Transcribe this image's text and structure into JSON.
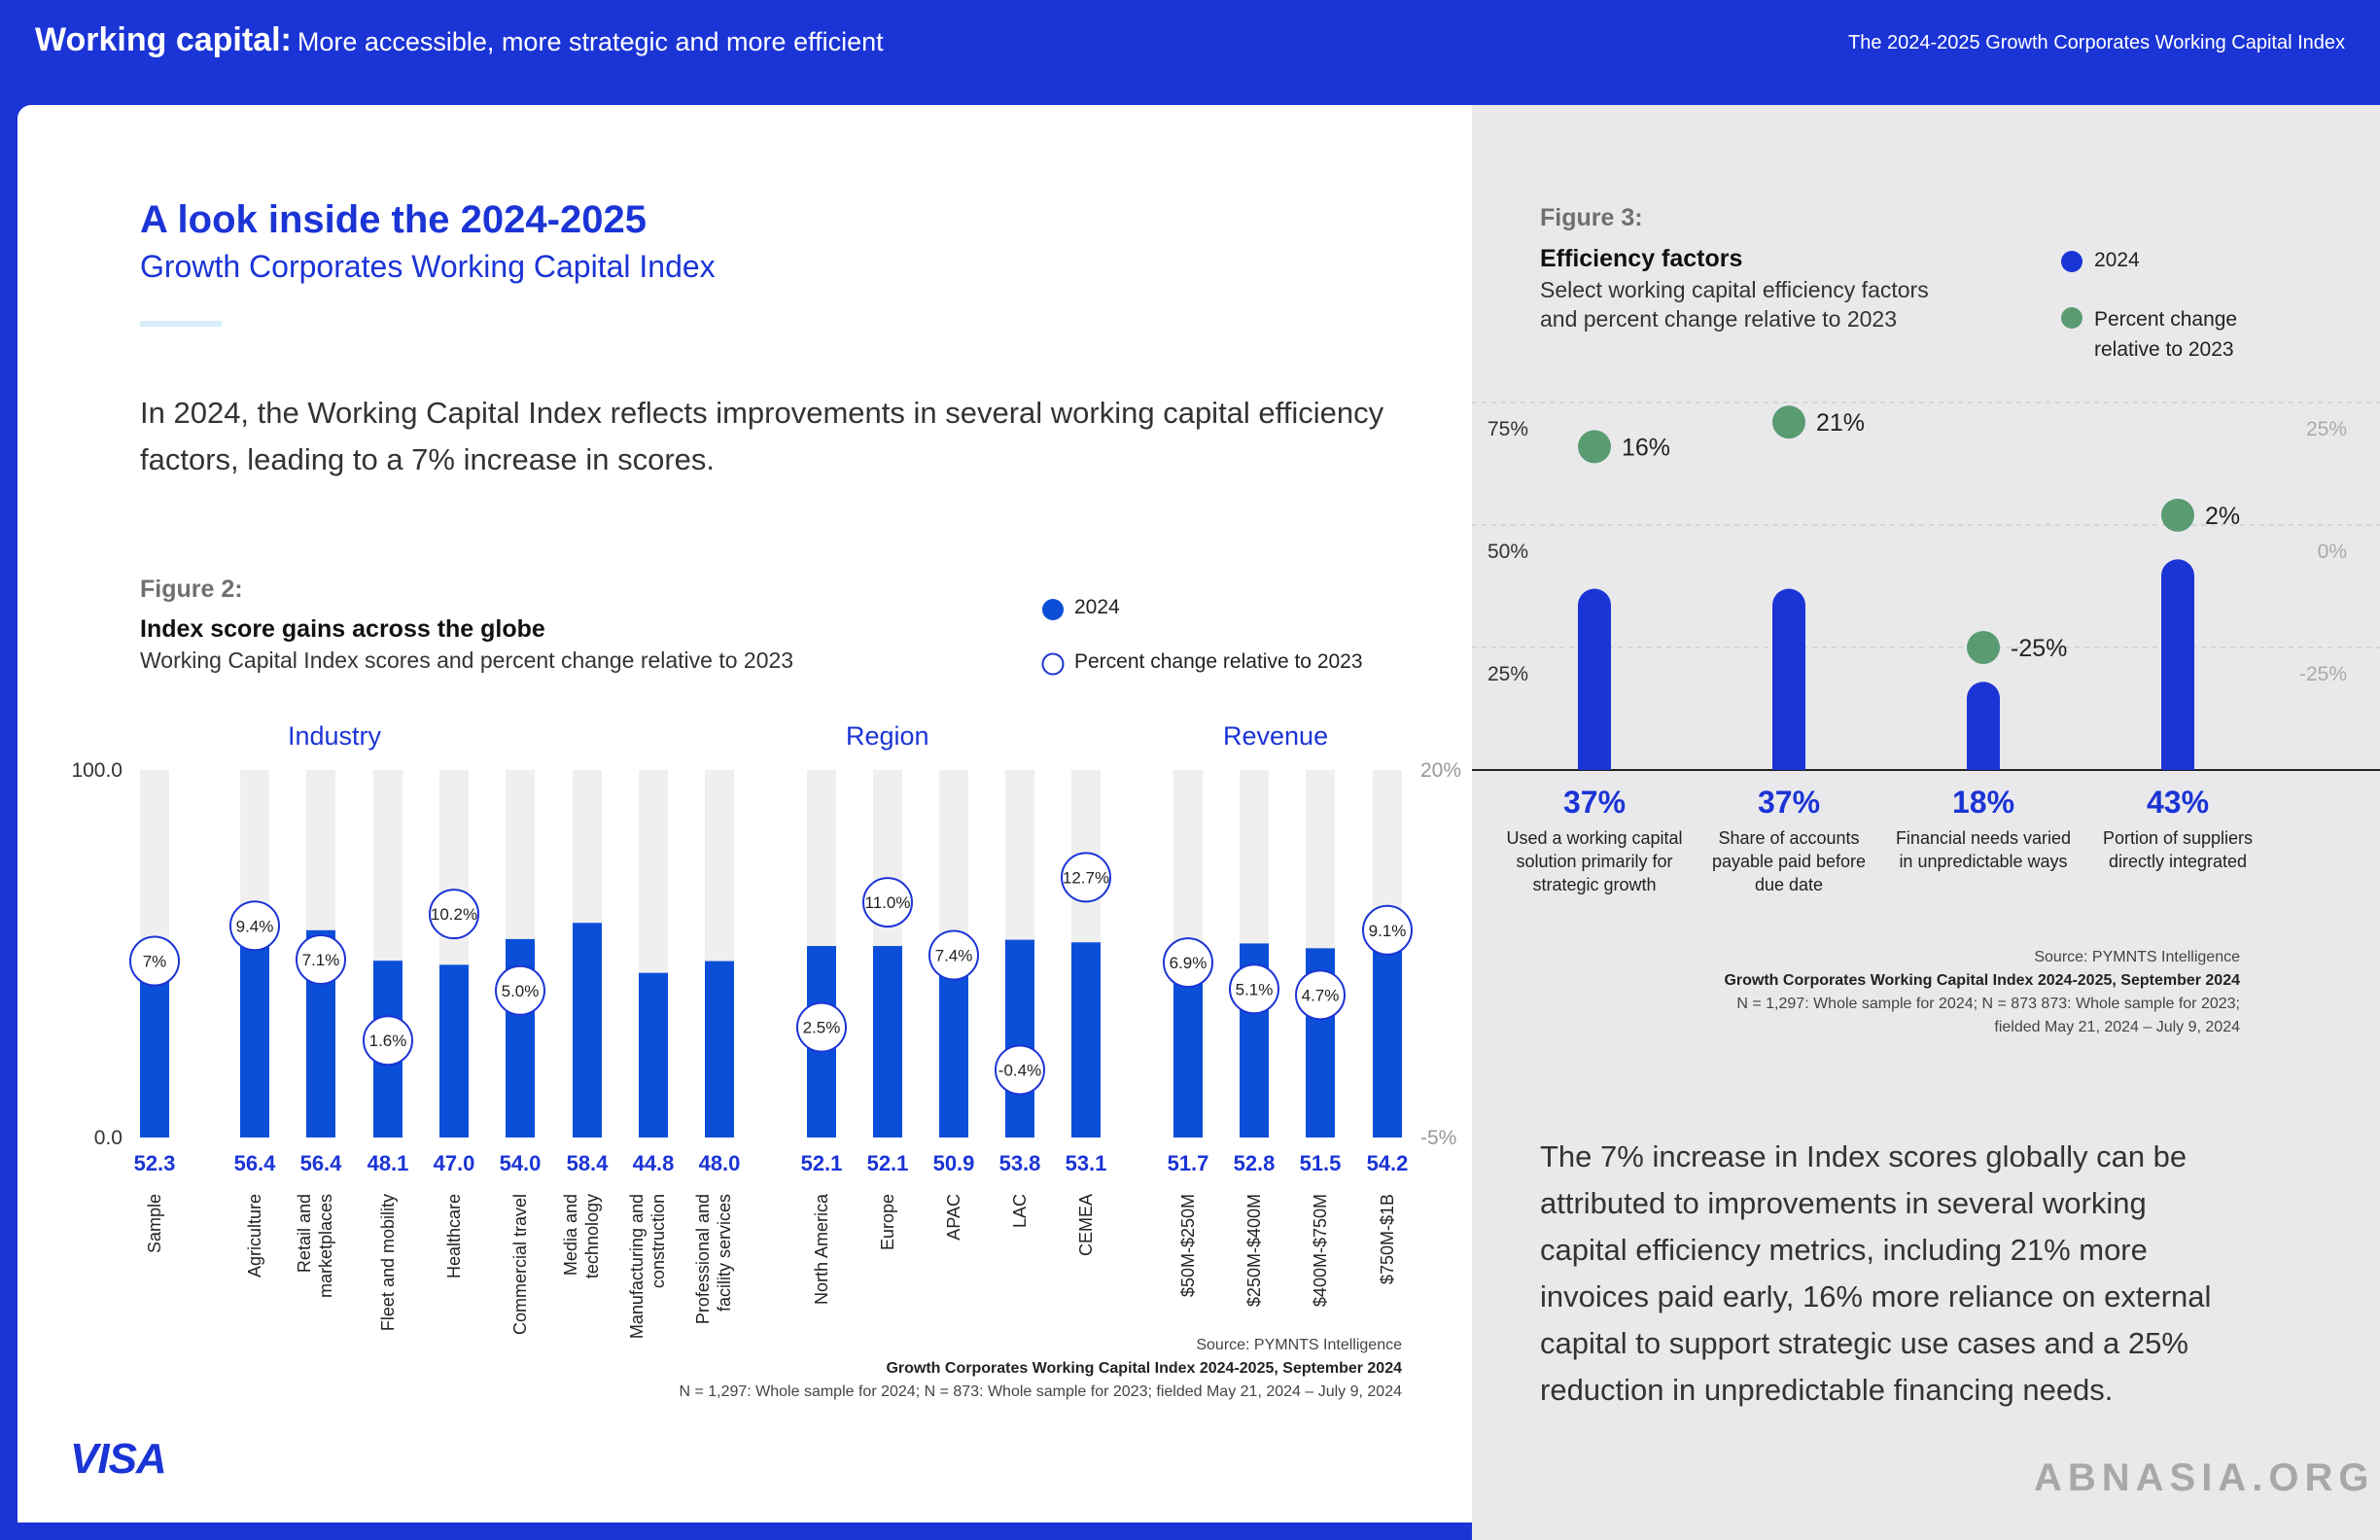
{
  "header": {
    "title_bold": "Working capital:",
    "title_rest": "More accessible, more strategic and more efficient",
    "right_title": "The 2024-2025 Growth Corporates Working Capital Index"
  },
  "left": {
    "title": "A look inside the 2024-2025",
    "subtitle": "Growth Corporates Working Capital Index",
    "intro": "In 2024, the Working Capital Index reflects improvements in several working capital efficiency factors, leading to a 7% increase in scores.",
    "figure_label": "Figure 2:",
    "figure_title": "Index score gains across the globe",
    "figure_desc": "Working Capital Index scores and percent change relative to 2023",
    "legend_2024": "2024",
    "legend_change": "Percent change relative to 2023",
    "source_line1": "Source: PYMNTS Intelligence",
    "source_line2": "Growth Corporates Working Capital Index 2024-2025, September 2024",
    "source_line3": "N = 1,297: Whole sample for 2024; N = 873: Whole sample for  2023; fielded May 21, 2024 – July 9, 2024",
    "logo": "VISA"
  },
  "right": {
    "figure_label": "Figure 3:",
    "figure_title": "Efficiency factors",
    "figure_desc": "Select working capital efficiency factors and percent change relative to 2023",
    "legend_2024": "2024",
    "legend_change": "Percent change relative to 2023",
    "source_line1": "Source: PYMNTS Intelligence",
    "source_line2": "Growth Corporates Working Capital Index 2024-2025, September 2024",
    "source_line3": "N = 1,297: Whole sample for 2024; N = 873 873: Whole sample for  2023;",
    "source_line4": "fielded May 21, 2024 – July 9, 2024",
    "closing": "The 7% increase in Index scores globally can be attributed to improvements in several working capital efficiency metrics, including 21% more invoices paid early, 16% more reliance on external capital to support strategic use cases and a 25% reduction in unpredictable financing needs.",
    "watermark": "ABNASIA.ORG"
  },
  "colors": {
    "brand_blue": "#1b34d6",
    "bar_blue": "#0b4fd9",
    "bar_track": "#efefef",
    "green": "#5b9b72"
  },
  "chart_data": [
    {
      "type": "bar",
      "title": "Index score gains across the globe",
      "subtitle": "Working Capital Index scores and percent change relative to 2023",
      "y_left_ticks": [
        "100.0",
        "0.0"
      ],
      "y_left_range": [
        0,
        100
      ],
      "y_right_ticks": [
        "20%",
        "-5%"
      ],
      "y_right_range": [
        -5,
        20
      ],
      "groups": [
        {
          "name": "",
          "categories": [
            "Sample"
          ],
          "values": [
            52.3
          ],
          "value_labels": [
            "52.3"
          ],
          "change": [
            7.0
          ],
          "change_labels": [
            "7%"
          ]
        },
        {
          "name": "Industry",
          "categories": [
            "Agriculture",
            "Retail and marketplaces",
            "Fleet and mobility",
            "Healthcare",
            "Commercial travel",
            "Media and technology",
            "Manufacturing and construction",
            "Professional and facility services"
          ],
          "values": [
            56.4,
            56.4,
            48.1,
            47.0,
            54.0,
            58.4,
            44.8,
            48.0
          ],
          "value_labels": [
            "56.4",
            "56.4",
            "48.1",
            "47.0",
            "54.0",
            "58.4",
            "44.8",
            "48.0"
          ],
          "change": [
            9.4,
            7.1,
            1.6,
            10.2,
            5.0,
            null,
            null,
            null
          ],
          "change_labels": [
            "9.4%",
            "7.1%",
            "1.6%",
            "10.2%",
            "5.0%",
            null,
            null,
            null
          ]
        },
        {
          "name": "Region",
          "categories": [
            "North America",
            "Europe",
            "APAC",
            "LAC",
            "CEMEA"
          ],
          "values": [
            52.1,
            52.1,
            50.9,
            53.8,
            53.1
          ],
          "value_labels": [
            "52.1",
            "52.1",
            "50.9",
            "53.8",
            "53.1"
          ],
          "change": [
            2.5,
            11.0,
            7.4,
            -0.4,
            12.7
          ],
          "change_labels": [
            "2.5%",
            "11.0%",
            "7.4%",
            "-0.4%",
            "12.7%"
          ]
        },
        {
          "name": "Revenue",
          "categories": [
            "$50M-$250M",
            "$250M-$400M",
            "$400M-$750M",
            "$750M-$1B"
          ],
          "values": [
            51.7,
            52.8,
            51.5,
            54.2
          ],
          "value_labels": [
            "51.7",
            "52.8",
            "51.5",
            "54.2"
          ],
          "change": [
            6.9,
            5.1,
            4.7,
            9.1
          ],
          "change_labels": [
            "6.9%",
            "5.1%",
            "4.7%",
            "9.1%"
          ]
        }
      ]
    },
    {
      "type": "bar",
      "title": "Efficiency factors",
      "subtitle": "Select working capital efficiency factors and percent change relative to 2023",
      "y_left_ticks": [
        "75%",
        "50%",
        "25%"
      ],
      "y_left_range": [
        0,
        75
      ],
      "y_right_ticks": [
        "25%",
        "0%",
        "-25%"
      ],
      "y_right_range": [
        -50,
        25
      ],
      "categories": [
        "Used a working capital solution primarily for strategic growth",
        "Share of accounts payable paid before due date",
        "Financial needs varied in unpredictable ways",
        "Portion of suppliers directly integrated"
      ],
      "values": [
        37,
        37,
        18,
        43
      ],
      "value_labels": [
        "37%",
        "37%",
        "18%",
        "43%"
      ],
      "change": [
        16,
        21,
        -25,
        2
      ],
      "change_labels": [
        "16%",
        "21%",
        "-25%",
        "2%"
      ]
    }
  ]
}
